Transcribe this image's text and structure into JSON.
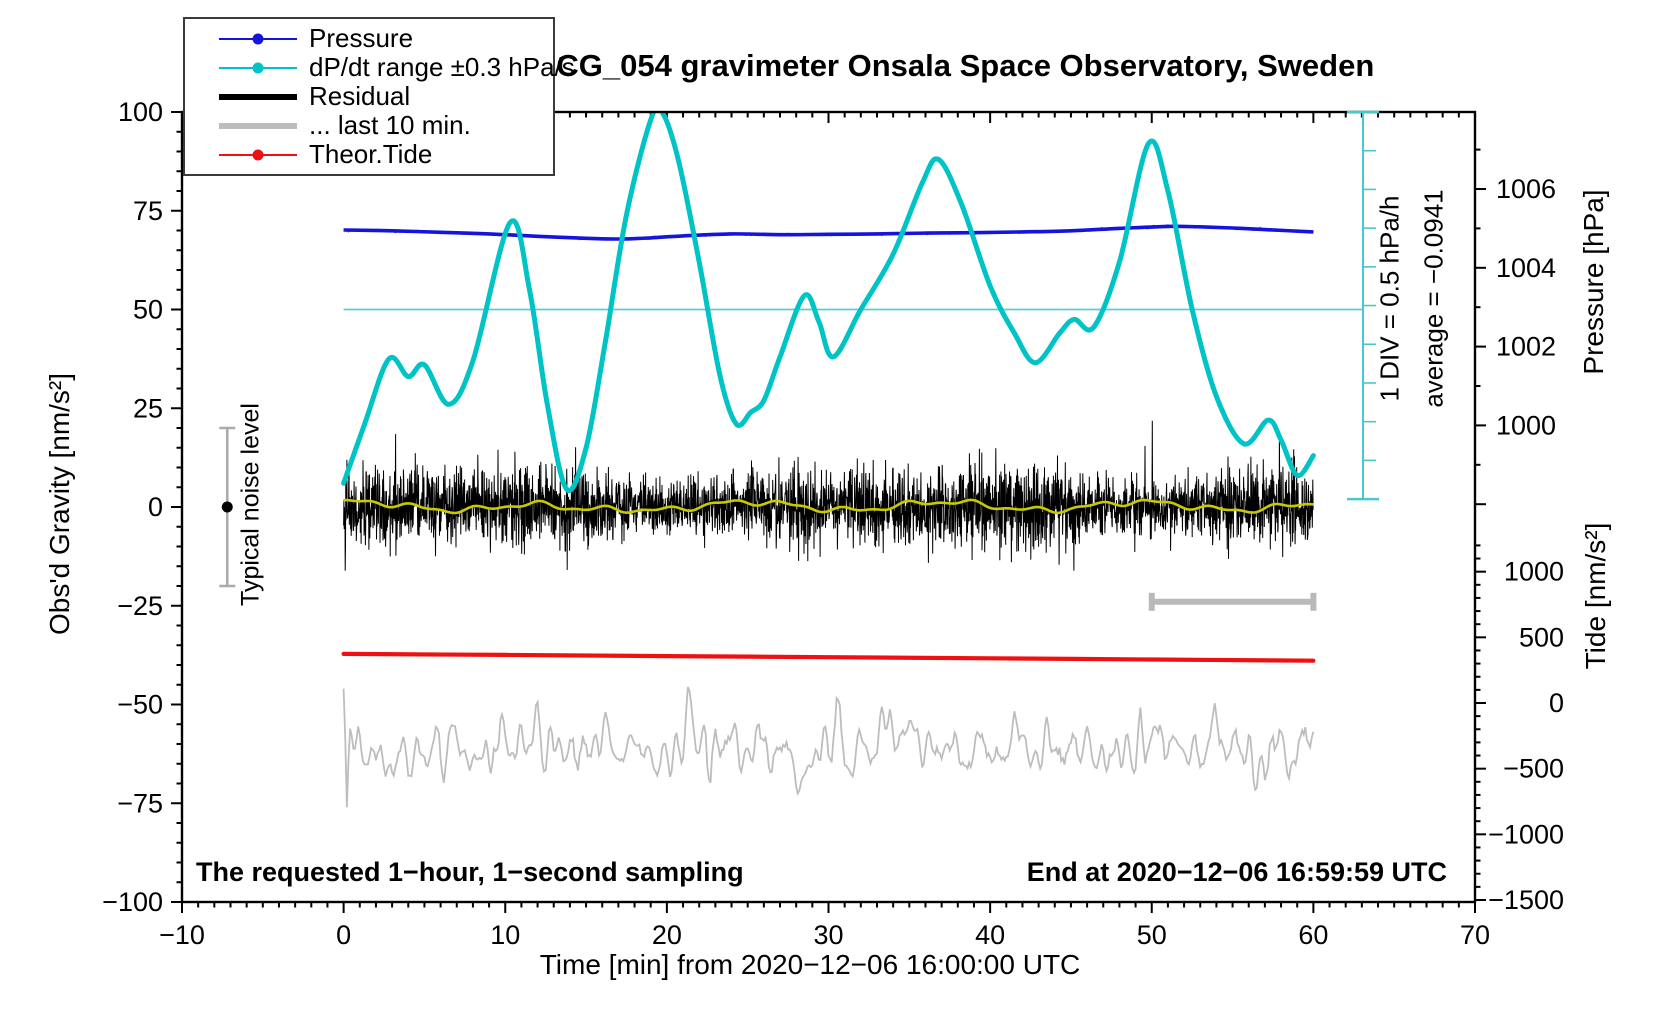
{
  "title": "SCG_054 gravimeter Onsala Space Observatory, Sweden",
  "legend": {
    "items": [
      {
        "label": "Pressure",
        "color": "#1414dd",
        "thick": false,
        "dot": true
      },
      {
        "label": "dP/dt range ±0.3 hPa/s",
        "color": "#00c3c6",
        "thick": false,
        "dot": true
      },
      {
        "label": "Residual",
        "color": "#000000",
        "thick": true,
        "dot": false
      },
      {
        "label": "... last 10 min.",
        "color": "#bdbdbd",
        "thick": true,
        "dot": false
      },
      {
        "label": "Theor.Tide",
        "color": "#ee1111",
        "thick": false,
        "dot": true
      }
    ]
  },
  "axes": {
    "x": {
      "label": "Time [min] from 2020−12−06 16:00:00 UTC"
    },
    "y_left": {
      "label": "Obs'd Gravity [nm/s²]"
    },
    "pressure": {
      "label": "Pressure [hPa]"
    },
    "tide": {
      "label": "Tide [nm/s²]"
    }
  },
  "annotations": {
    "div_note_1": "1 DIV = 0.5 hPa/h",
    "div_note_2": "average = −0.0941",
    "noise_label": "Typical noise level",
    "note_left": "The requested 1−hour, 1−second sampling",
    "note_right": "End at 2020−12−06 16:59:59 UTC"
  },
  "chart_data": {
    "type": "line",
    "title": "SCG_054 gravimeter Onsala Space Observatory, Sweden",
    "x_axis": {
      "label": "Time [min] from 2020-12-06 16:00:00 UTC",
      "range": [
        -10,
        70
      ],
      "major_tick_step": 10,
      "minor_tick_step": 1,
      "major_ticks": [
        -10,
        0,
        10,
        20,
        30,
        40,
        50,
        60,
        70
      ]
    },
    "y_axis_left": {
      "label": "Obs'd Gravity [nm/s²]",
      "range": [
        -100,
        100
      ],
      "major_tick_step": 25,
      "minor_tick_step": 5,
      "major_ticks": [
        -100,
        -75,
        -50,
        -25,
        0,
        25,
        50,
        75,
        100
      ]
    },
    "y_axis_right_pressure": {
      "label": "Pressure [hPa]",
      "visible_range": [
        998,
        1008
      ],
      "labeled_ticks": [
        1000,
        1002,
        1004,
        1006
      ],
      "minor_tick_step": 1
    },
    "y_axis_right_tide": {
      "label": "Tide [nm/s²]",
      "visible_range": [
        -1500,
        1200
      ],
      "labeled_ticks": [
        -1500,
        -1000,
        -500,
        0,
        500,
        1000
      ],
      "minor_tick_step": 100
    },
    "grid": false,
    "legend_position": "top-left",
    "series": [
      {
        "name": "Pressure",
        "axis": "pressure",
        "unit": "hPa",
        "color": "#1414dd",
        "points": [
          [
            0,
            1004.96
          ],
          [
            3,
            1004.94
          ],
          [
            6,
            1004.9
          ],
          [
            9,
            1004.86
          ],
          [
            12,
            1004.8
          ],
          [
            15,
            1004.75
          ],
          [
            17,
            1004.73
          ],
          [
            19,
            1004.76
          ],
          [
            21,
            1004.81
          ],
          [
            24,
            1004.86
          ],
          [
            27,
            1004.84
          ],
          [
            30,
            1004.85
          ],
          [
            33,
            1004.86
          ],
          [
            36,
            1004.88
          ],
          [
            39,
            1004.89
          ],
          [
            42,
            1004.91
          ],
          [
            45,
            1004.94
          ],
          [
            48,
            1005.0
          ],
          [
            51,
            1005.05
          ],
          [
            53,
            1005.04
          ],
          [
            55,
            1005.01
          ],
          [
            57,
            1004.97
          ],
          [
            60,
            1004.91
          ]
        ]
      },
      {
        "name": "dP/dt range ±0.3 hPa/s",
        "axis": "gravity",
        "unit": "plotted on gravity axis; 1 DIV = 10 axis units = 0.5 hPa/h",
        "color": "#00c3c6",
        "points": [
          [
            0,
            6
          ],
          [
            1.3,
            21
          ],
          [
            2.8,
            37.5
          ],
          [
            4,
            33
          ],
          [
            5,
            36
          ],
          [
            6.5,
            26
          ],
          [
            8,
            37
          ],
          [
            10.3,
            72
          ],
          [
            11.5,
            55
          ],
          [
            12.6,
            26
          ],
          [
            13.8,
            4.5
          ],
          [
            15,
            15
          ],
          [
            16.2,
            42
          ],
          [
            17.5,
            74
          ],
          [
            19,
            98
          ],
          [
            19.7,
            100
          ],
          [
            20.7,
            88
          ],
          [
            22,
            62
          ],
          [
            23.3,
            33
          ],
          [
            24.3,
            21
          ],
          [
            25.2,
            24
          ],
          [
            26,
            27
          ],
          [
            27,
            38
          ],
          [
            28.5,
            53.5
          ],
          [
            29.4,
            47
          ],
          [
            30.3,
            38
          ],
          [
            32,
            50
          ],
          [
            34,
            64
          ],
          [
            35.8,
            82
          ],
          [
            36.8,
            88
          ],
          [
            38.2,
            77
          ],
          [
            40,
            56
          ],
          [
            41.5,
            44
          ],
          [
            42.8,
            36.5
          ],
          [
            44.3,
            44
          ],
          [
            45.2,
            47.5
          ],
          [
            46.4,
            45.5
          ],
          [
            48,
            62
          ],
          [
            49.8,
            92
          ],
          [
            51,
            80
          ],
          [
            52.5,
            50
          ],
          [
            54,
            28
          ],
          [
            55.7,
            16
          ],
          [
            57.2,
            22
          ],
          [
            58,
            17
          ],
          [
            59,
            8
          ],
          [
            60,
            13
          ]
        ]
      },
      {
        "name": "Residual",
        "axis": "gravity",
        "unit": "nm/s²",
        "color": "#000000",
        "description": "zero-mean 1 Hz noise, dense band about ±13 nm/s² with spikes to ±25",
        "noise": {
          "n": 3600,
          "sigma": 4.5,
          "spike_prob": 0.005,
          "spike_gain": 2.1,
          "clip": 26,
          "seed": 42
        }
      },
      {
        "name": "Residual smoothed",
        "axis": "gravity",
        "unit": "nm/s²",
        "color": "#c9c900",
        "description": "slow wobble ±2 nm/s² around zero overlaying the residual"
      },
      {
        "name": "... last 10 min.",
        "axis": "gravity",
        "unit": "nm/s² (offset trace)",
        "color": "#bdbdbd",
        "description": "last 10 minutes of residual, re-scaled, drawn centered near −61 on gravity axis",
        "noise": {
          "n": 600,
          "sigma": 8.5,
          "offset": -61,
          "smooth_window": 3,
          "seed": 7
        }
      },
      {
        "name": "Theor.Tide",
        "axis": "tide",
        "unit": "nm/s²",
        "color": "#ee1111",
        "points": [
          [
            0,
            374
          ],
          [
            10,
            366
          ],
          [
            20,
            357
          ],
          [
            30,
            349
          ],
          [
            40,
            340
          ],
          [
            50,
            331
          ],
          [
            60,
            322
          ]
        ]
      }
    ],
    "reference_line_gravity_50": {
      "axis": "gravity",
      "value": 50,
      "t_start": 0,
      "t_end_px_at": "div bar",
      "color": "#5bcdd0"
    },
    "div_scale_bar": {
      "color": "#49c8cb",
      "top_gravity": 100,
      "bottom_gravity": 2,
      "divisions": 10,
      "note": "1 DIV = 0.5 hPa/h, average = −0.0941"
    },
    "last10_scale_bar": {
      "t_start": 50,
      "t_end": 60,
      "gravity": -24,
      "color": "#b9b9b9"
    },
    "noise_level_marker": {
      "t": -7.2,
      "center_gravity": 0,
      "whisker": 20,
      "label": "Typical noise level"
    }
  }
}
